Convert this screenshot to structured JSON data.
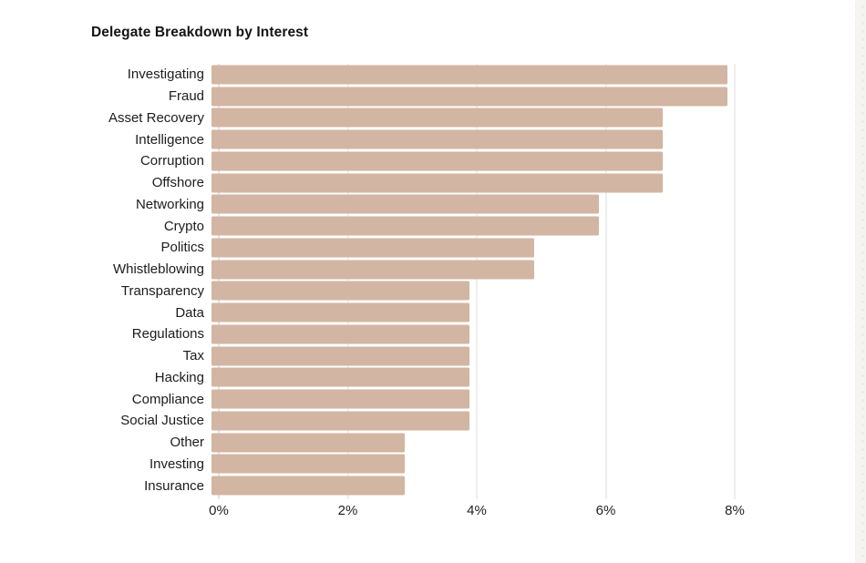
{
  "chart": {
    "title": "Delegate Breakdown by Interest"
  },
  "chart_data": {
    "type": "bar",
    "orientation": "horizontal",
    "title": "Delegate Breakdown by Interest",
    "categories": [
      "Investigating",
      "Fraud",
      "Asset Recovery",
      "Intelligence",
      "Corruption",
      "Offshore",
      "Networking",
      "Crypto",
      "Politics",
      "Whistleblowing",
      "Transparency",
      "Data",
      "Regulations",
      "Tax",
      "Hacking",
      "Compliance",
      "Social Justice",
      "Other",
      "Investing",
      "Insurance"
    ],
    "values": [
      8,
      8,
      7,
      7,
      7,
      7,
      6,
      6,
      5,
      5,
      4,
      4,
      4,
      4,
      4,
      4,
      4,
      3,
      3,
      3
    ],
    "unit": "%",
    "xlabel": "",
    "ylabel": "",
    "xlim": [
      0,
      8
    ],
    "xtick_labels": [
      "0%",
      "2%",
      "4%",
      "6%",
      "8%"
    ],
    "xtick_values": [
      0,
      2,
      4,
      6,
      8
    ],
    "grid": true,
    "legend": "none",
    "bar_color": "#d2b5a2",
    "gridline_color": "#dddddd",
    "text_color": "#1c1c1c"
  }
}
